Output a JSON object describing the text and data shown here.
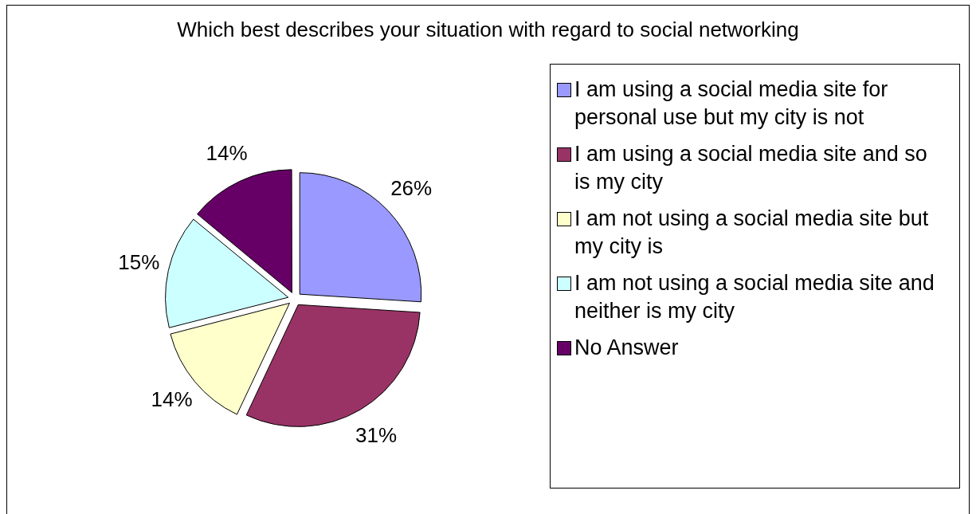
{
  "chart_data": {
    "type": "pie",
    "title": "Which best describes your situation with regard to social networking",
    "categories": [
      "I am using a social media site for personal use but my city is not",
      "I am using a social media site and so is my city",
      "I am not using a social media site but my city is",
      "I am not using a social media site and neither is my city",
      "No Answer"
    ],
    "values": [
      26,
      31,
      14,
      15,
      14
    ],
    "colors": [
      "#9999ff",
      "#993366",
      "#ffffcc",
      "#ccffff",
      "#660066"
    ],
    "value_labels": [
      "26%",
      "31%",
      "14%",
      "15%",
      "14%"
    ],
    "legend": "right"
  }
}
